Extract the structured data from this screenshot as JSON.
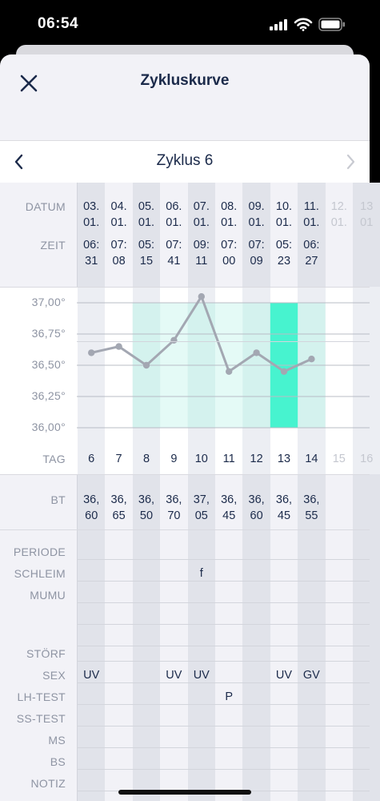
{
  "status_bar": {
    "time": "06:54"
  },
  "header": {
    "title": "Zykluskurve",
    "close_icon": "close-icon"
  },
  "cycle": {
    "title": "Zyklus 6"
  },
  "row_labels": {
    "datum": "DATUM",
    "zeit": "ZEIT",
    "tag": "TAG",
    "bt": "BT",
    "periode": "PERIODE",
    "schleim": "SCHLEIM",
    "mumu": "MUMU",
    "stoerf": "STÖRF",
    "sex": "SEX",
    "lh_test": "LH-TEST",
    "ss_test": "SS-TEST",
    "ms": "MS",
    "bs": "BS",
    "notiz": "NOTIZ"
  },
  "y_axis_labels": [
    "37,00°",
    "36,75°",
    "36,50°",
    "36,25°",
    "36,00°"
  ],
  "days": [
    {
      "date1": "03.",
      "date2": "01.",
      "time1": "06:",
      "time2": "31",
      "tag": "6",
      "bt1": "36,",
      "bt2": "60",
      "schleim": "",
      "sex": "UV",
      "lh": ""
    },
    {
      "date1": "04.",
      "date2": "01.",
      "time1": "07:",
      "time2": "08",
      "tag": "7",
      "bt1": "36,",
      "bt2": "65",
      "schleim": "",
      "sex": "",
      "lh": ""
    },
    {
      "date1": "05.",
      "date2": "01.",
      "time1": "05:",
      "time2": "15",
      "tag": "8",
      "bt1": "36,",
      "bt2": "50",
      "schleim": "",
      "sex": "",
      "lh": ""
    },
    {
      "date1": "06.",
      "date2": "01.",
      "time1": "07:",
      "time2": "41",
      "tag": "9",
      "bt1": "36,",
      "bt2": "70",
      "schleim": "",
      "sex": "UV",
      "lh": ""
    },
    {
      "date1": "07.",
      "date2": "01.",
      "time1": "09:",
      "time2": "11",
      "tag": "10",
      "bt1": "37,",
      "bt2": "05",
      "schleim": "f",
      "sex": "UV",
      "lh": ""
    },
    {
      "date1": "08.",
      "date2": "01.",
      "time1": "07:",
      "time2": "00",
      "tag": "11",
      "bt1": "36,",
      "bt2": "45",
      "schleim": "",
      "sex": "",
      "lh": "P"
    },
    {
      "date1": "09.",
      "date2": "01.",
      "time1": "07:",
      "time2": "09",
      "tag": "12",
      "bt1": "36,",
      "bt2": "60",
      "schleim": "",
      "sex": "",
      "lh": ""
    },
    {
      "date1": "10.",
      "date2": "01.",
      "time1": "05:",
      "time2": "23",
      "tag": "13",
      "bt1": "36,",
      "bt2": "45",
      "schleim": "",
      "sex": "UV",
      "lh": ""
    },
    {
      "date1": "11.",
      "date2": "01.",
      "time1": "06:",
      "time2": "27",
      "tag": "14",
      "bt1": "36,",
      "bt2": "55",
      "schleim": "",
      "sex": "GV",
      "lh": ""
    },
    {
      "date1": "12.",
      "date2": "01.",
      "time1": "",
      "time2": "",
      "tag": "15",
      "bt1": "",
      "bt2": "",
      "schleim": "",
      "sex": "",
      "lh": "",
      "future": true
    },
    {
      "date1": "13",
      "date2": "01",
      "time1": "",
      "time2": "",
      "tag": "16",
      "bt1": "",
      "bt2": "",
      "schleim": "",
      "sex": "",
      "lh": "",
      "future": true
    }
  ],
  "chart_data": {
    "type": "line",
    "x": [
      6,
      7,
      8,
      9,
      10,
      11,
      12,
      13,
      14
    ],
    "series": [
      {
        "values": [
          36.6,
          36.65,
          36.5,
          36.7,
          37.05,
          36.45,
          36.6,
          36.45,
          36.55
        ]
      }
    ],
    "ylim": [
      36.0,
      37.0
    ],
    "y_ticks": [
      "37,00°",
      "36,75°",
      "36,50°",
      "36,25°",
      "36,00°"
    ],
    "xlabel": "TAG",
    "fertile_window_days": [
      8,
      9,
      10,
      11,
      12,
      13,
      14
    ],
    "highlighted_day": 13,
    "colors": {
      "line": "#a3a7b2",
      "fertile": "#dff9f4",
      "highlight": "#47f3cf",
      "stripe": "#e1e3ea"
    }
  }
}
